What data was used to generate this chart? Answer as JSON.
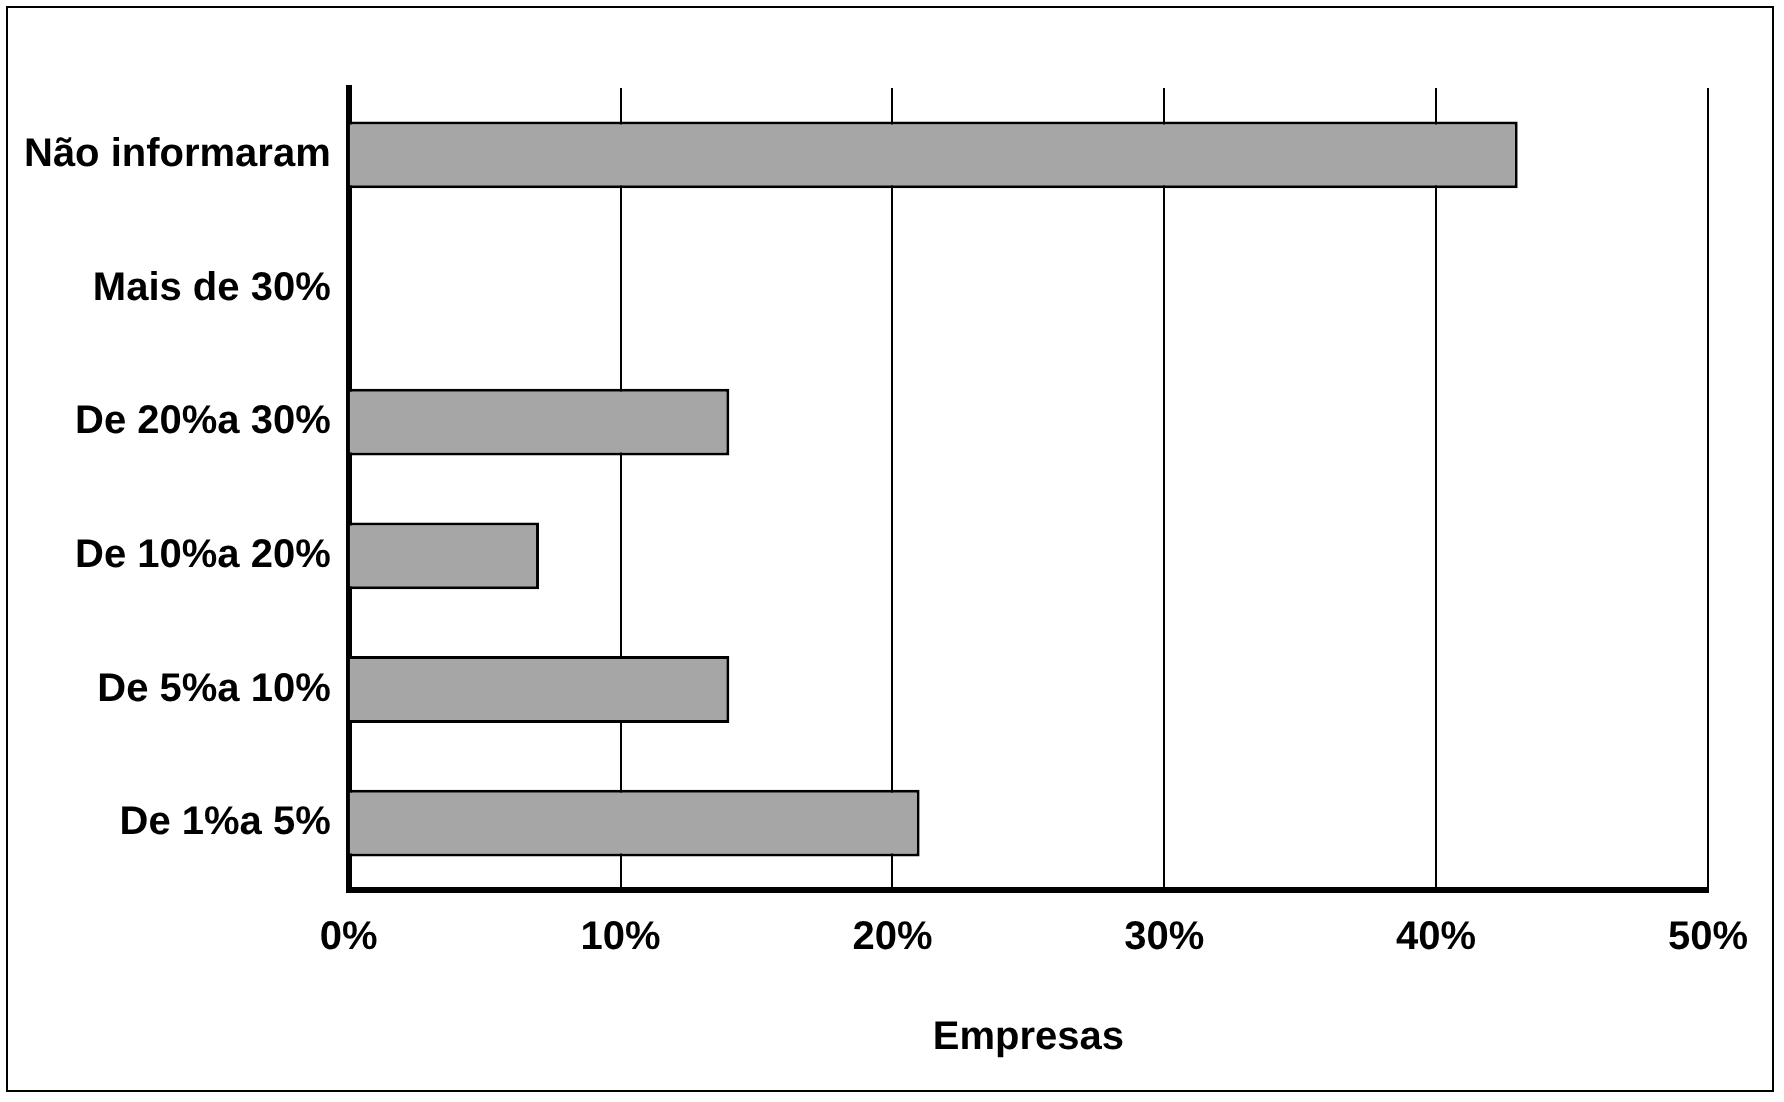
{
  "chart_data": {
    "type": "bar",
    "orientation": "horizontal",
    "xlabel": "Empresas",
    "categories": [
      "Não informaram",
      "Mais de 30%",
      "De 20%a 30%",
      "De 10%a 20%",
      "De 5%a 10%",
      "De 1%a 5%"
    ],
    "values": [
      43,
      0,
      14,
      7,
      14,
      21
    ],
    "color": "#a6a6a6",
    "xlim": [
      0,
      50
    ],
    "xticks": [
      {
        "value": 0,
        "label": "0%"
      },
      {
        "value": 10,
        "label": "10%"
      },
      {
        "value": 20,
        "label": "20%"
      },
      {
        "value": 30,
        "label": "30%"
      },
      {
        "value": 40,
        "label": "40%"
      },
      {
        "value": 50,
        "label": "50%"
      }
    ],
    "grid": "x",
    "legend": false
  }
}
